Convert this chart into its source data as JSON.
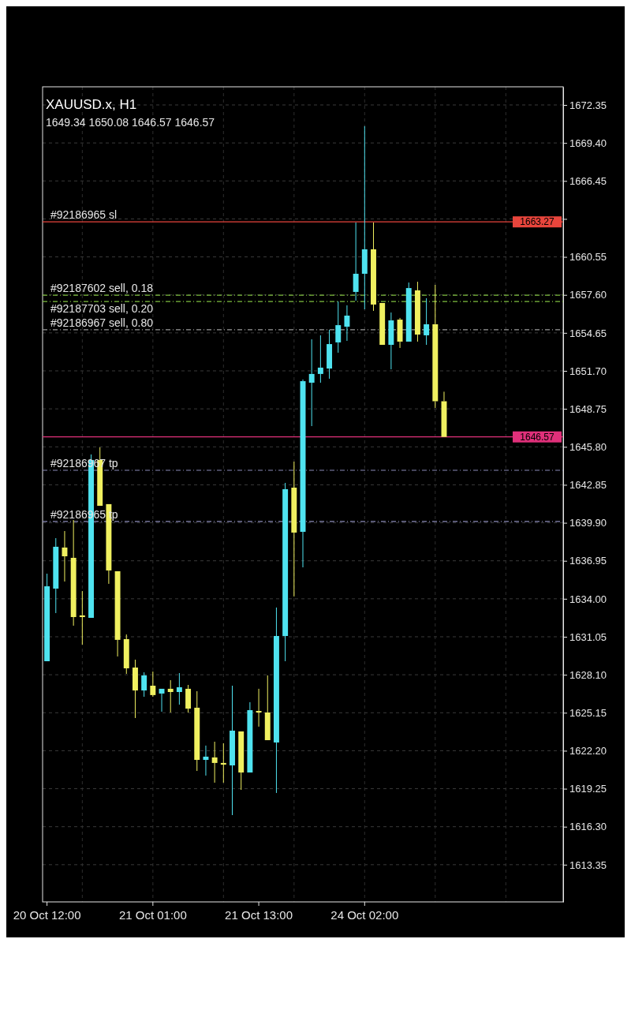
{
  "chart_data": {
    "type": "candlestick",
    "title": "XAUUSD.x, H1",
    "subtitle": "1649.34 1650.08 1646.57 1646.57",
    "categories": [
      "20 Oct 12:00",
      null,
      null,
      null,
      null,
      null,
      null,
      null,
      null,
      null,
      null,
      null,
      "21 Oct 01:00",
      null,
      null,
      null,
      null,
      null,
      null,
      null,
      null,
      null,
      null,
      null,
      "21 Oct 13:00",
      null,
      null,
      null,
      null,
      null,
      null,
      null,
      null,
      null,
      null,
      null,
      "24 Oct 02:00",
      null,
      null,
      null,
      null,
      null,
      null,
      null,
      null,
      null,
      null,
      null,
      null,
      null,
      null,
      null,
      null,
      null,
      null,
      null,
      null,
      null,
      null
    ],
    "ohlc": [
      [
        1629.15,
        1635.95,
        1629.15,
        1634.97
      ],
      [
        1634.79,
        1638.71,
        1632.89,
        1638.04
      ],
      [
        1637.98,
        1639.26,
        1635.34,
        1637.3
      ],
      [
        1637.18,
        1640.12,
        1631.91,
        1632.58
      ],
      [
        1632.71,
        1634.6,
        1630.44,
        1632.58
      ],
      [
        1632.52,
        1645.21,
        1632.52,
        1644.78
      ],
      [
        1644.78,
        1645.76,
        1641.22,
        1641.22
      ],
      [
        1641.35,
        1641.47,
        1635.16,
        1636.2
      ],
      [
        1636.14,
        1636.2,
        1629.52,
        1630.81
      ],
      [
        1630.87,
        1631.23,
        1628.17,
        1628.6
      ],
      [
        1628.66,
        1629.27,
        1624.74,
        1626.88
      ],
      [
        1626.88,
        1628.29,
        1626.39,
        1628.05
      ],
      [
        1627.25,
        1628.35,
        1626.39,
        1626.52
      ],
      [
        1626.64,
        1627.01,
        1625.23,
        1627.01
      ],
      [
        1627.01,
        1627.68,
        1625.17,
        1626.76
      ],
      [
        1626.76,
        1628.23,
        1625.78,
        1627.13
      ],
      [
        1627.01,
        1627.31,
        1625.17,
        1625.47
      ],
      [
        1625.54,
        1626.82,
        1620.63,
        1621.49
      ],
      [
        1621.49,
        1622.6,
        1620.27,
        1621.74
      ],
      [
        1621.68,
        1622.9,
        1619.72,
        1621.25
      ],
      [
        1621.25,
        1622.78,
        1619.72,
        1621.12
      ],
      [
        1621.06,
        1627.25,
        1617.2,
        1623.76
      ],
      [
        1623.7,
        1623.7,
        1619.16,
        1620.51
      ],
      [
        1620.51,
        1625.97,
        1620.51,
        1625.35
      ],
      [
        1625.29,
        1627.01,
        1624.07,
        1625.17
      ],
      [
        1625.17,
        1628.05,
        1622.96,
        1623.02
      ],
      [
        1622.84,
        1633.32,
        1618.92,
        1631.11
      ],
      [
        1631.11,
        1643.0,
        1629.15,
        1642.51
      ],
      [
        1642.63,
        1644.65,
        1634.18,
        1639.14
      ],
      [
        1639.2,
        1651.03,
        1636.44,
        1650.9
      ],
      [
        1650.78,
        1654.15,
        1647.41,
        1651.46
      ],
      [
        1651.46,
        1654.46,
        1650.78,
        1651.95
      ],
      [
        1651.88,
        1654.89,
        1651.09,
        1653.78
      ],
      [
        1653.91,
        1657.09,
        1653.11,
        1655.25
      ],
      [
        1655.13,
        1656.79,
        1654.03,
        1655.99
      ],
      [
        1657.83,
        1663.22,
        1657.15,
        1659.24
      ],
      [
        1659.24,
        1670.7,
        1656.48,
        1661.14
      ],
      [
        1661.14,
        1663.22,
        1656.36,
        1656.85
      ],
      [
        1656.97,
        1657.09,
        1653.72,
        1653.72
      ],
      [
        1653.72,
        1656.23,
        1651.82,
        1655.62
      ],
      [
        1655.68,
        1655.81,
        1653.48,
        1653.97
      ],
      [
        1653.97,
        1658.56,
        1653.85,
        1658.13
      ],
      [
        1657.95,
        1658.62,
        1653.97,
        1654.52
      ],
      [
        1654.46,
        1657.34,
        1653.72,
        1655.32
      ],
      [
        1655.32,
        1658.38,
        1648.82,
        1649.34
      ],
      [
        1649.34,
        1650.08,
        1646.57,
        1646.57
      ],
      null,
      null,
      null,
      null,
      null,
      null,
      null,
      null,
      null,
      null,
      null,
      null,
      null
    ],
    "colors": [
      "#4fe3f0",
      "#4fe3f0",
      "#f0f060",
      "#f0f060",
      "#f0f060",
      "#4fe3f0",
      "#f0f060",
      "#f0f060",
      "#f0f060",
      "#f0f060",
      "#f0f060",
      "#4fe3f0",
      "#f0f060",
      "#4fe3f0",
      "#f0f060",
      "#4fe3f0",
      "#f0f060",
      "#f0f060",
      "#4fe3f0",
      "#f0f060",
      "#f0f060",
      "#4fe3f0",
      "#f0f060",
      "#4fe3f0",
      "#f0f060",
      "#f0f060",
      "#4fe3f0",
      "#4fe3f0",
      "#f0f060",
      "#4fe3f0",
      "#4fe3f0",
      "#4fe3f0",
      "#4fe3f0",
      "#4fe3f0",
      "#4fe3f0",
      "#4fe3f0",
      "#4fe3f0",
      "#f0f060",
      "#f0f060",
      "#4fe3f0",
      "#f0f060",
      "#4fe3f0",
      "#f0f060",
      "#4fe3f0",
      "#f0f060",
      "#f0f060",
      null,
      null,
      null,
      null,
      null,
      null,
      null,
      null,
      null,
      null,
      null,
      null,
      null
    ],
    "ylim": [
      1610.46,
      1673.76
    ],
    "yticks": [
      {
        "value": 1672.35,
        "label": "1672.35"
      },
      {
        "value": 1669.4,
        "label": "1669.40"
      },
      {
        "value": 1666.45,
        "label": "1666.45"
      },
      {
        "value": 1663.5,
        "label": null
      },
      {
        "value": 1660.55,
        "label": "1660.55"
      },
      {
        "value": 1657.6,
        "label": "1657.60"
      },
      {
        "value": 1654.65,
        "label": "1654.65"
      },
      {
        "value": 1651.7,
        "label": "1651.70"
      },
      {
        "value": 1648.75,
        "label": "1648.75"
      },
      {
        "value": 1645.8,
        "label": "1645.80"
      },
      {
        "value": 1642.85,
        "label": "1642.85"
      },
      {
        "value": 1639.9,
        "label": "1639.90"
      },
      {
        "value": 1636.95,
        "label": "1636.95"
      },
      {
        "value": 1634.0,
        "label": "1634.00"
      },
      {
        "value": 1631.05,
        "label": "1631.05"
      },
      {
        "value": 1628.1,
        "label": "1628.10"
      },
      {
        "value": 1625.15,
        "label": "1625.15"
      },
      {
        "value": 1622.2,
        "label": "1622.20"
      },
      {
        "value": 1619.25,
        "label": "1619.25"
      },
      {
        "value": 1616.3,
        "label": "1616.30"
      },
      {
        "value": 1613.35,
        "label": "1613.35"
      }
    ],
    "grid": true,
    "annotations": [
      {
        "text": "1663.27",
        "y": 1663.27
      },
      {
        "text": "1646.57",
        "y": 1646.57
      }
    ],
    "ref_lines": [
      {
        "axis": "y",
        "value": 1663.27,
        "label": "#92186965 sl",
        "color": "#e8453c",
        "line_style": "solid"
      },
      {
        "axis": "y",
        "value": 1657.58,
        "label": "#92187602 sell, 0.18",
        "color": "#7fbf3f",
        "line_style": "dashed"
      },
      {
        "axis": "y",
        "value": 1657.09,
        "label": "#92187703 sell, 0.20",
        "color": "#7fbf3f",
        "line_style": "dashed"
      },
      {
        "axis": "y",
        "value": 1654.89,
        "label": "#92186967 sell, 0.80",
        "color": "#9a9a9a",
        "line_style": "dashed"
      },
      {
        "axis": "y",
        "value": 1646.57,
        "label": null,
        "color": "#e0307a",
        "line_style": "solid"
      },
      {
        "axis": "y",
        "value": 1643.98,
        "label": "#92186967 tp",
        "color": "#8a8ab8",
        "line_style": "dashed"
      },
      {
        "axis": "y",
        "value": 1640.0,
        "label": "#92186965 tp",
        "color": "#8a8ab8",
        "line_style": "dashed"
      }
    ]
  }
}
